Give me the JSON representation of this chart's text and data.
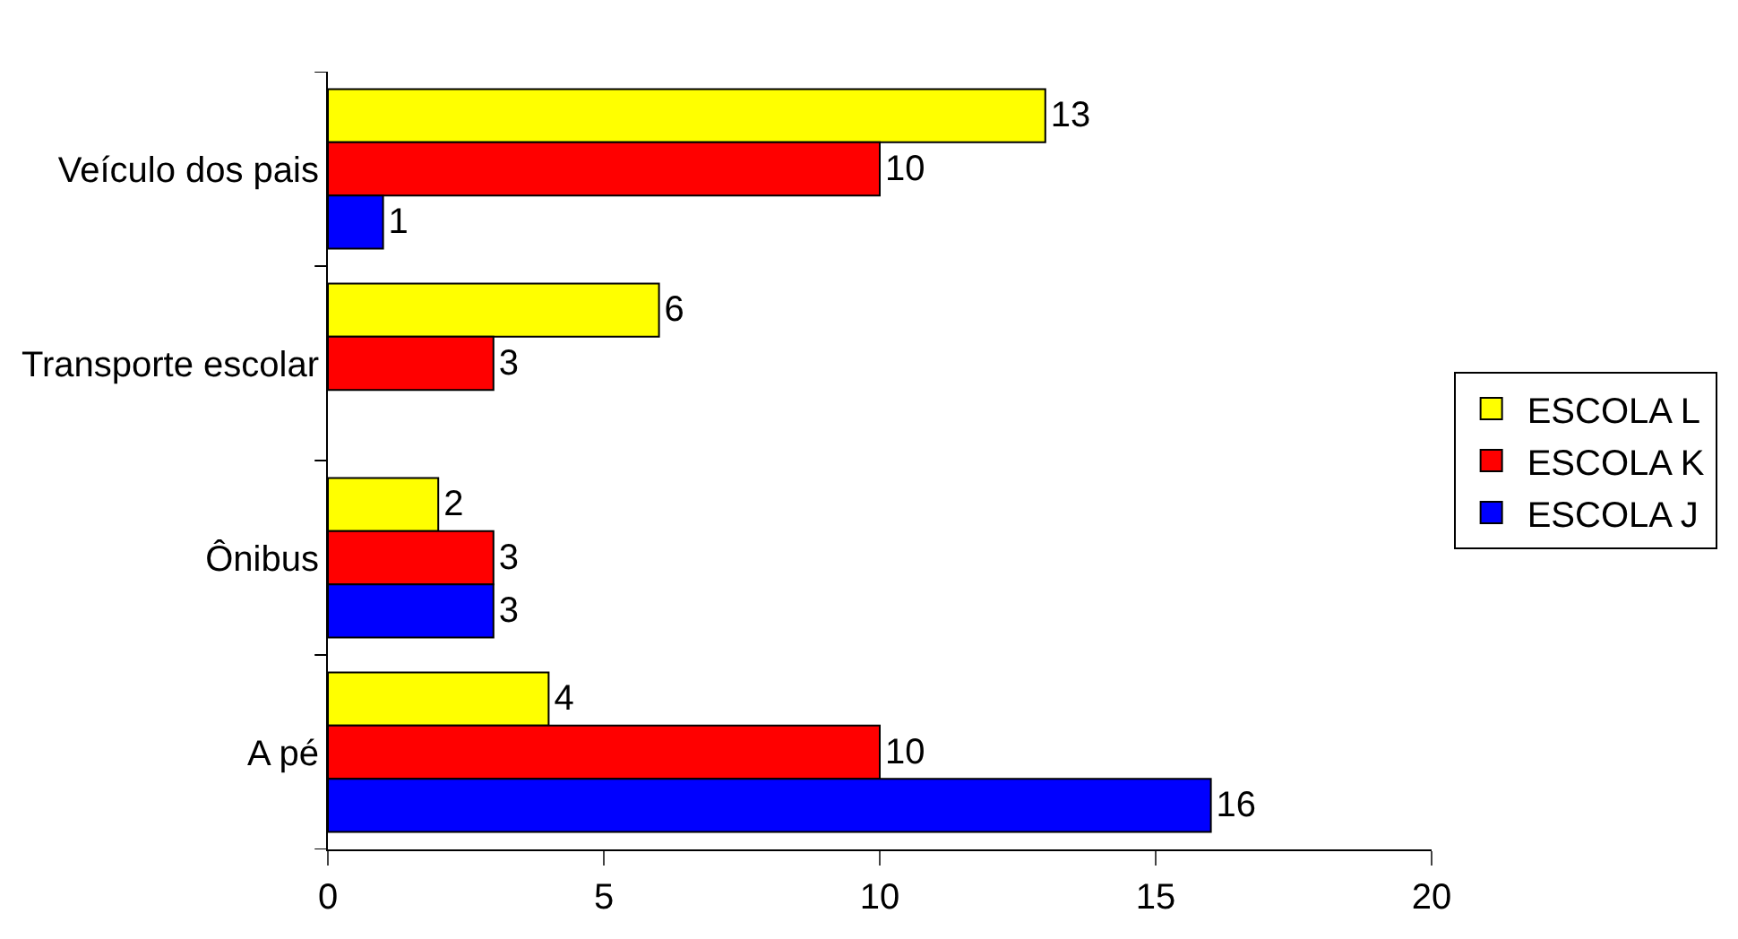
{
  "chart_data": {
    "type": "bar",
    "orientation": "horizontal",
    "categories": [
      "Veículo dos pais",
      "Transporte escolar",
      "Ônibus",
      "A pé"
    ],
    "series": [
      {
        "name": "ESCOLA L",
        "color": "#ffff00",
        "values": [
          13,
          6,
          2,
          4
        ]
      },
      {
        "name": "ESCOLA K",
        "color": "#ff0000",
        "values": [
          10,
          3,
          3,
          10
        ]
      },
      {
        "name": "ESCOLA J",
        "color": "#0000ff",
        "values": [
          1,
          null,
          3,
          16
        ]
      }
    ],
    "xlim": [
      0,
      20
    ],
    "xticks": [
      0,
      5,
      10,
      15,
      20
    ],
    "legend": "right",
    "data_labels": true
  }
}
